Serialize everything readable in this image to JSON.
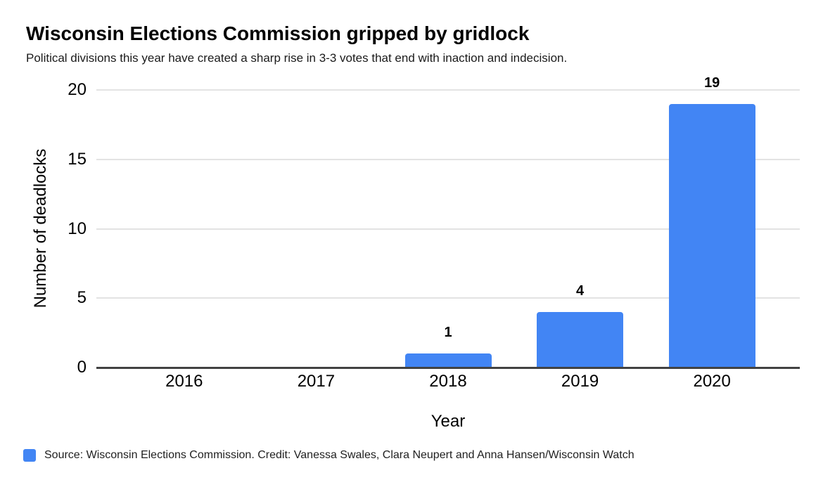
{
  "page": {
    "title": "Wisconsin Elections Commission gripped by gridlock",
    "subtitle": "Political divisions this year have created a sharp rise in 3-3 votes that end with inaction and indecision."
  },
  "chart_data": {
    "type": "bar",
    "title": "Wisconsin Elections Commission gripped by gridlock",
    "subtitle": "Political divisions this year have created a sharp rise in 3-3 votes that end with inaction and indecision.",
    "categories": [
      "2016",
      "2017",
      "2018",
      "2019",
      "2020"
    ],
    "values": [
      0,
      0,
      1,
      4,
      19
    ],
    "data_labels": [
      "",
      "",
      "1",
      "4",
      "19"
    ],
    "xlabel": "Year",
    "ylabel": "Number of deadlocks",
    "ylim": [
      0,
      20
    ],
    "yticks": [
      0,
      5,
      10,
      15,
      20
    ],
    "grid": "horizontal",
    "legend_position": "bottom"
  },
  "legend": {
    "label": "Source: Wisconsin Elections Commission. Credit: Vanessa Swales, Clara Neupert and Anna Hansen/Wisconsin Watch"
  },
  "colors": {
    "bar": "#4285f4",
    "gridline": "#e3e3e3",
    "baseline": "#424242",
    "text": "#000000"
  }
}
